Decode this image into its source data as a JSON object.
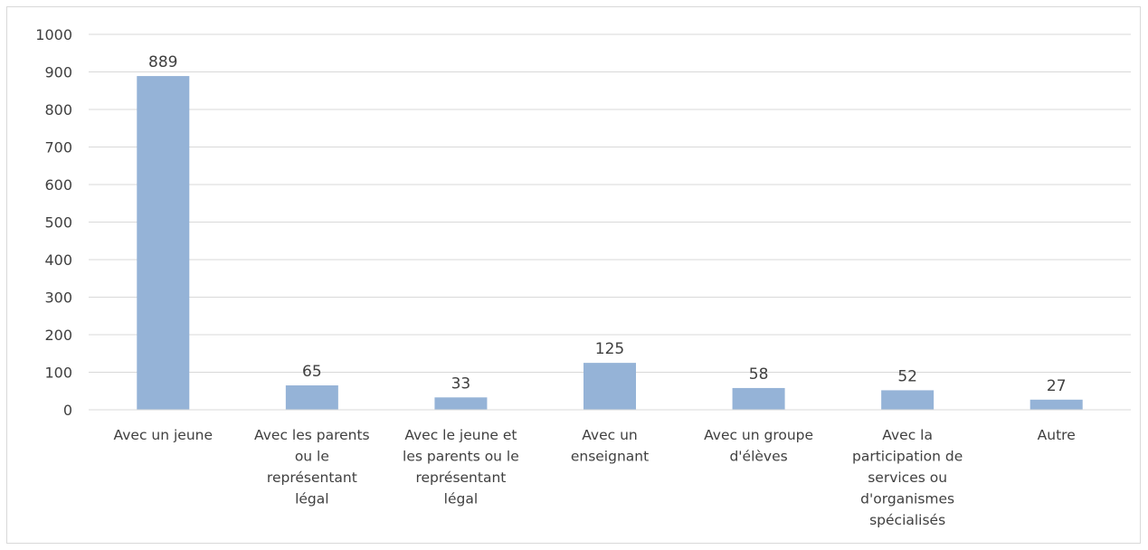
{
  "chart_data": {
    "type": "bar",
    "title": "",
    "xlabel": "",
    "ylabel": "",
    "categories": [
      "Avec un jeune",
      "Avec les parents ou le représentant légal",
      "Avec le jeune et les parents ou le représentant légal",
      "Avec un enseignant",
      "Avec un groupe d'élèves",
      "Avec la participation de services ou d'organismes spécialisés",
      "Autre"
    ],
    "category_lines": [
      [
        "Avec un jeune"
      ],
      [
        "Avec les parents",
        "ou le",
        "représentant",
        "légal"
      ],
      [
        "Avec le jeune et",
        "les parents ou le",
        "représentant",
        "légal"
      ],
      [
        "Avec un",
        "enseignant"
      ],
      [
        "Avec un groupe",
        "d'élèves"
      ],
      [
        "Avec la",
        "participation de",
        "services ou",
        "d'organismes",
        "spécialisés"
      ],
      [
        "Autre"
      ]
    ],
    "values": [
      889,
      65,
      33,
      125,
      58,
      52,
      27
    ],
    "data_labels": [
      "889",
      "65",
      "33",
      "125",
      "58",
      "52",
      "27"
    ],
    "ylim": [
      0,
      1000
    ],
    "yticks": [
      "0",
      "100",
      "200",
      "300",
      "400",
      "500",
      "600",
      "700",
      "800",
      "900",
      "1000"
    ],
    "grid": true,
    "legend": "none",
    "bar_color": "#95b3d7",
    "grid_color": "#d9d9d9",
    "text_color": "#404040"
  }
}
